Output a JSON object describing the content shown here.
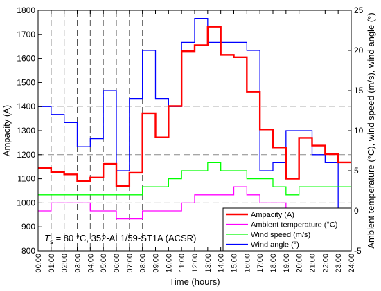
{
  "chart_data": {
    "type": "line",
    "step": true,
    "xlabel": "Time (hours)",
    "ylabel_left": "Ampacity (A)",
    "ylabel_right": "Ambient temperature (°C), wind speed (m/s), wind angle (°)",
    "ylim_left": [
      800,
      1800
    ],
    "ylim_right": [
      -5,
      25
    ],
    "yticks_left": [
      800,
      900,
      1000,
      1100,
      1200,
      1300,
      1400,
      1500,
      1600,
      1700,
      1800
    ],
    "yticks_right": [
      -5,
      0,
      5,
      10,
      15,
      20,
      25
    ],
    "x_tick_labels": [
      "00:00",
      "01:00",
      "02:00",
      "03:00",
      "04:00",
      "05:00",
      "06:00",
      "07:00",
      "08:00",
      "09:00",
      "10:00",
      "11:00",
      "12:00",
      "13:00",
      "14:00",
      "15:00",
      "16:00",
      "17:00",
      "18:00",
      "19:00",
      "20:00",
      "21:00",
      "22:00",
      "23:00",
      "24:00"
    ],
    "dashed_vlines_hours": [
      1,
      2,
      3,
      4,
      5,
      6,
      7,
      8
    ],
    "dashed_hlines_left": [
      1000,
      1200,
      1400
    ],
    "annotation": {
      "prefix": "T",
      "subscript": "s",
      "suffix": " = 80 °C, 352-AL1/59-ST1A (ACSR)"
    },
    "legend_position": "bottom-right",
    "series": [
      {
        "name": "Ampacity (A)",
        "axis": "left",
        "color": "#ff0000",
        "width": 2.4,
        "values": [
          1145,
          1128,
          1118,
          1090,
          1105,
          1162,
          1070,
          1125,
          1372,
          1272,
          1402,
          1630,
          1655,
          1732,
          1615,
          1605,
          1462,
          1305,
          1230,
          1100,
          1270,
          1238,
          1202,
          1168
        ]
      },
      {
        "name": "Ambient temperature (°C)",
        "axis": "right",
        "color": "#ff00ff",
        "width": 1.3,
        "values": [
          0,
          1,
          1,
          1,
          0,
          0,
          -1,
          -1,
          0,
          0,
          0,
          1,
          2,
          2,
          2,
          3,
          2,
          1,
          1,
          0,
          0,
          0,
          0,
          0
        ]
      },
      {
        "name": "Wind speed (m/s)",
        "axis": "right",
        "color": "#00ff00",
        "width": 1.3,
        "values": [
          2,
          2,
          2,
          2,
          2,
          2,
          2,
          2,
          3,
          3,
          4,
          5,
          5,
          6,
          5,
          5,
          4,
          4,
          3,
          2,
          3,
          3,
          3,
          3
        ]
      },
      {
        "name": "Wind angle (°)",
        "axis": "right",
        "color": "#0000ff",
        "width": 1.3,
        "values": [
          13,
          12,
          11,
          8,
          9,
          15,
          5,
          14,
          20,
          14,
          13,
          21,
          24,
          21,
          21,
          21,
          20,
          5,
          6,
          10,
          10,
          7,
          6,
          0
        ]
      }
    ]
  }
}
